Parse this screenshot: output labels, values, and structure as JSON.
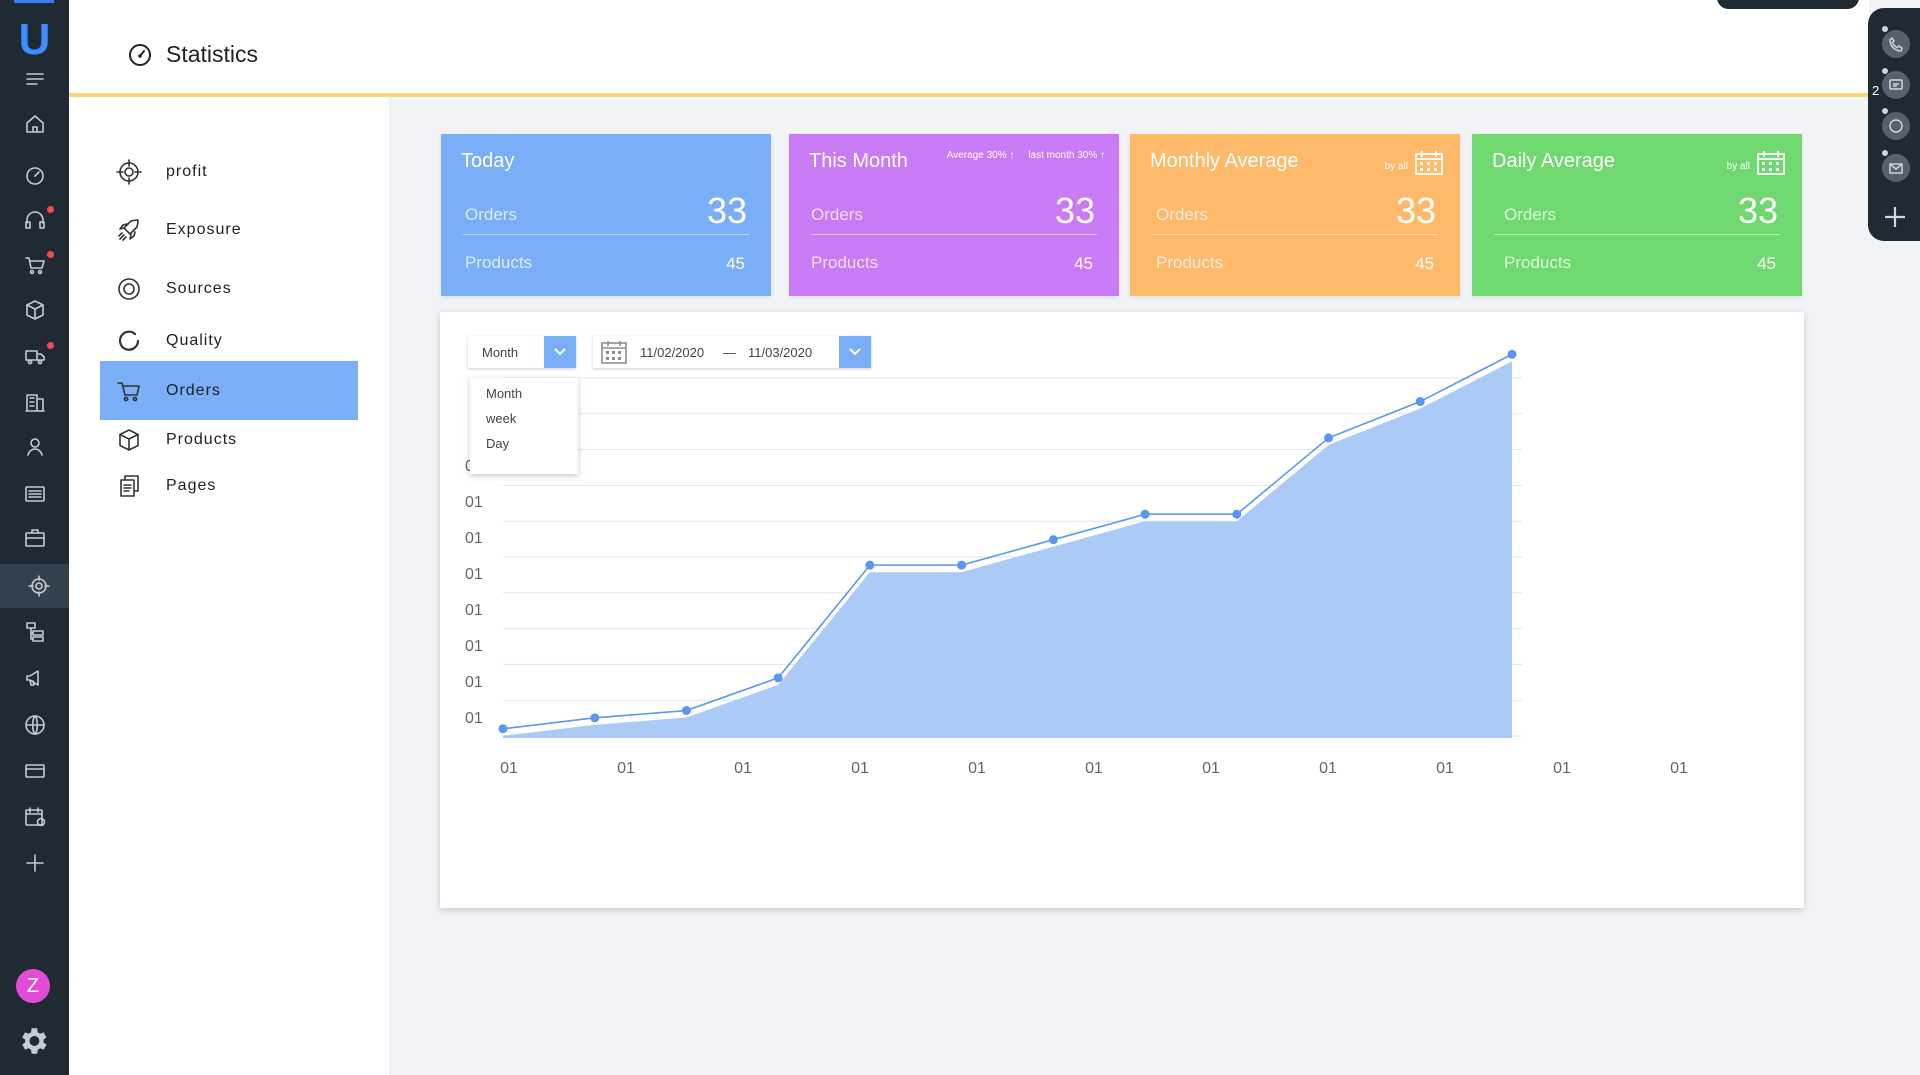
{
  "app": {
    "logo": "U",
    "title": "Statistics"
  },
  "rail": {
    "items": [
      {
        "name": "menu-icon"
      },
      {
        "name": "home-icon"
      },
      {
        "name": "dashboard-icon"
      },
      {
        "name": "headset-icon",
        "dot": true
      },
      {
        "name": "cart-icon",
        "dot": true
      },
      {
        "name": "box-icon"
      },
      {
        "name": "truck-icon",
        "dot": true
      },
      {
        "name": "building-icon"
      },
      {
        "name": "user-icon"
      },
      {
        "name": "list-icon"
      },
      {
        "name": "briefcase-icon"
      },
      {
        "name": "target-icon",
        "active": true
      },
      {
        "name": "hierarchy-icon"
      },
      {
        "name": "megaphone-icon"
      },
      {
        "name": "globe-icon"
      },
      {
        "name": "card-icon"
      },
      {
        "name": "calendar-icon"
      },
      {
        "name": "plus-icon"
      }
    ],
    "avatar": "Z"
  },
  "subnav": {
    "items": [
      {
        "label": "profit",
        "icon": "target-icon"
      },
      {
        "label": "Exposure",
        "icon": "rocket-icon"
      },
      {
        "label": "Sources",
        "icon": "ring-icon"
      },
      {
        "label": "Quality",
        "icon": "refresh-icon"
      },
      {
        "label": "Orders",
        "icon": "cart-icon",
        "active": true
      },
      {
        "label": "Products",
        "icon": "box-icon"
      },
      {
        "label": "Pages",
        "icon": "pages-icon"
      }
    ]
  },
  "dock": {
    "badge": "2",
    "buttons": [
      "phone-icon",
      "chat-icon",
      "message-icon",
      "mail-icon"
    ]
  },
  "cards": [
    {
      "title": "Today",
      "color": "#7aaef7",
      "orders_label": "Orders",
      "orders": "33",
      "products_label": "Products",
      "products": "45"
    },
    {
      "title": "This Month",
      "color": "#c97af5",
      "orders_label": "Orders",
      "orders": "33",
      "products_label": "Products",
      "products": "45",
      "tag1": "Average 30%",
      "tag2": "last month 30%"
    },
    {
      "title": "Monthly Average",
      "color": "#ffb96b",
      "orders_label": "Orders",
      "orders": "33",
      "products_label": "Products",
      "products": "45",
      "byall": "by all"
    },
    {
      "title": "Daily Average",
      "color": "#6fd86f",
      "orders_label": "Orders",
      "orders": "33",
      "products_label": "Products",
      "products": "45",
      "byall": "by all"
    }
  ],
  "filters": {
    "period_selected": "Month",
    "period_options": [
      "Month",
      "week",
      "Day"
    ],
    "date_from": "11/02/2020",
    "date_sep": "—",
    "date_to": "11/03/2020"
  },
  "chart_data": {
    "type": "area",
    "title": "",
    "xlabel": "",
    "ylabel": "",
    "x_tick_labels": [
      "01",
      "01",
      "01",
      "01",
      "01",
      "01",
      "01",
      "01",
      "01",
      "01",
      "01"
    ],
    "y_tick_labels": [
      "01",
      "01",
      "01",
      "01",
      "01",
      "01",
      "01",
      "01"
    ],
    "x": [
      1,
      2,
      3,
      4,
      5,
      6,
      7,
      8,
      9,
      10,
      11,
      12
    ],
    "series": [
      {
        "values": [
          0.2,
          0.5,
          0.7,
          1.6,
          4.7,
          4.7,
          5.4,
          6.1,
          6.1,
          8.2,
          9.2,
          10.5
        ],
        "color": "#5b97ef"
      }
    ],
    "ylim": [
      0,
      10.7
    ],
    "grid": true,
    "fill_color": "#abcbf6"
  }
}
